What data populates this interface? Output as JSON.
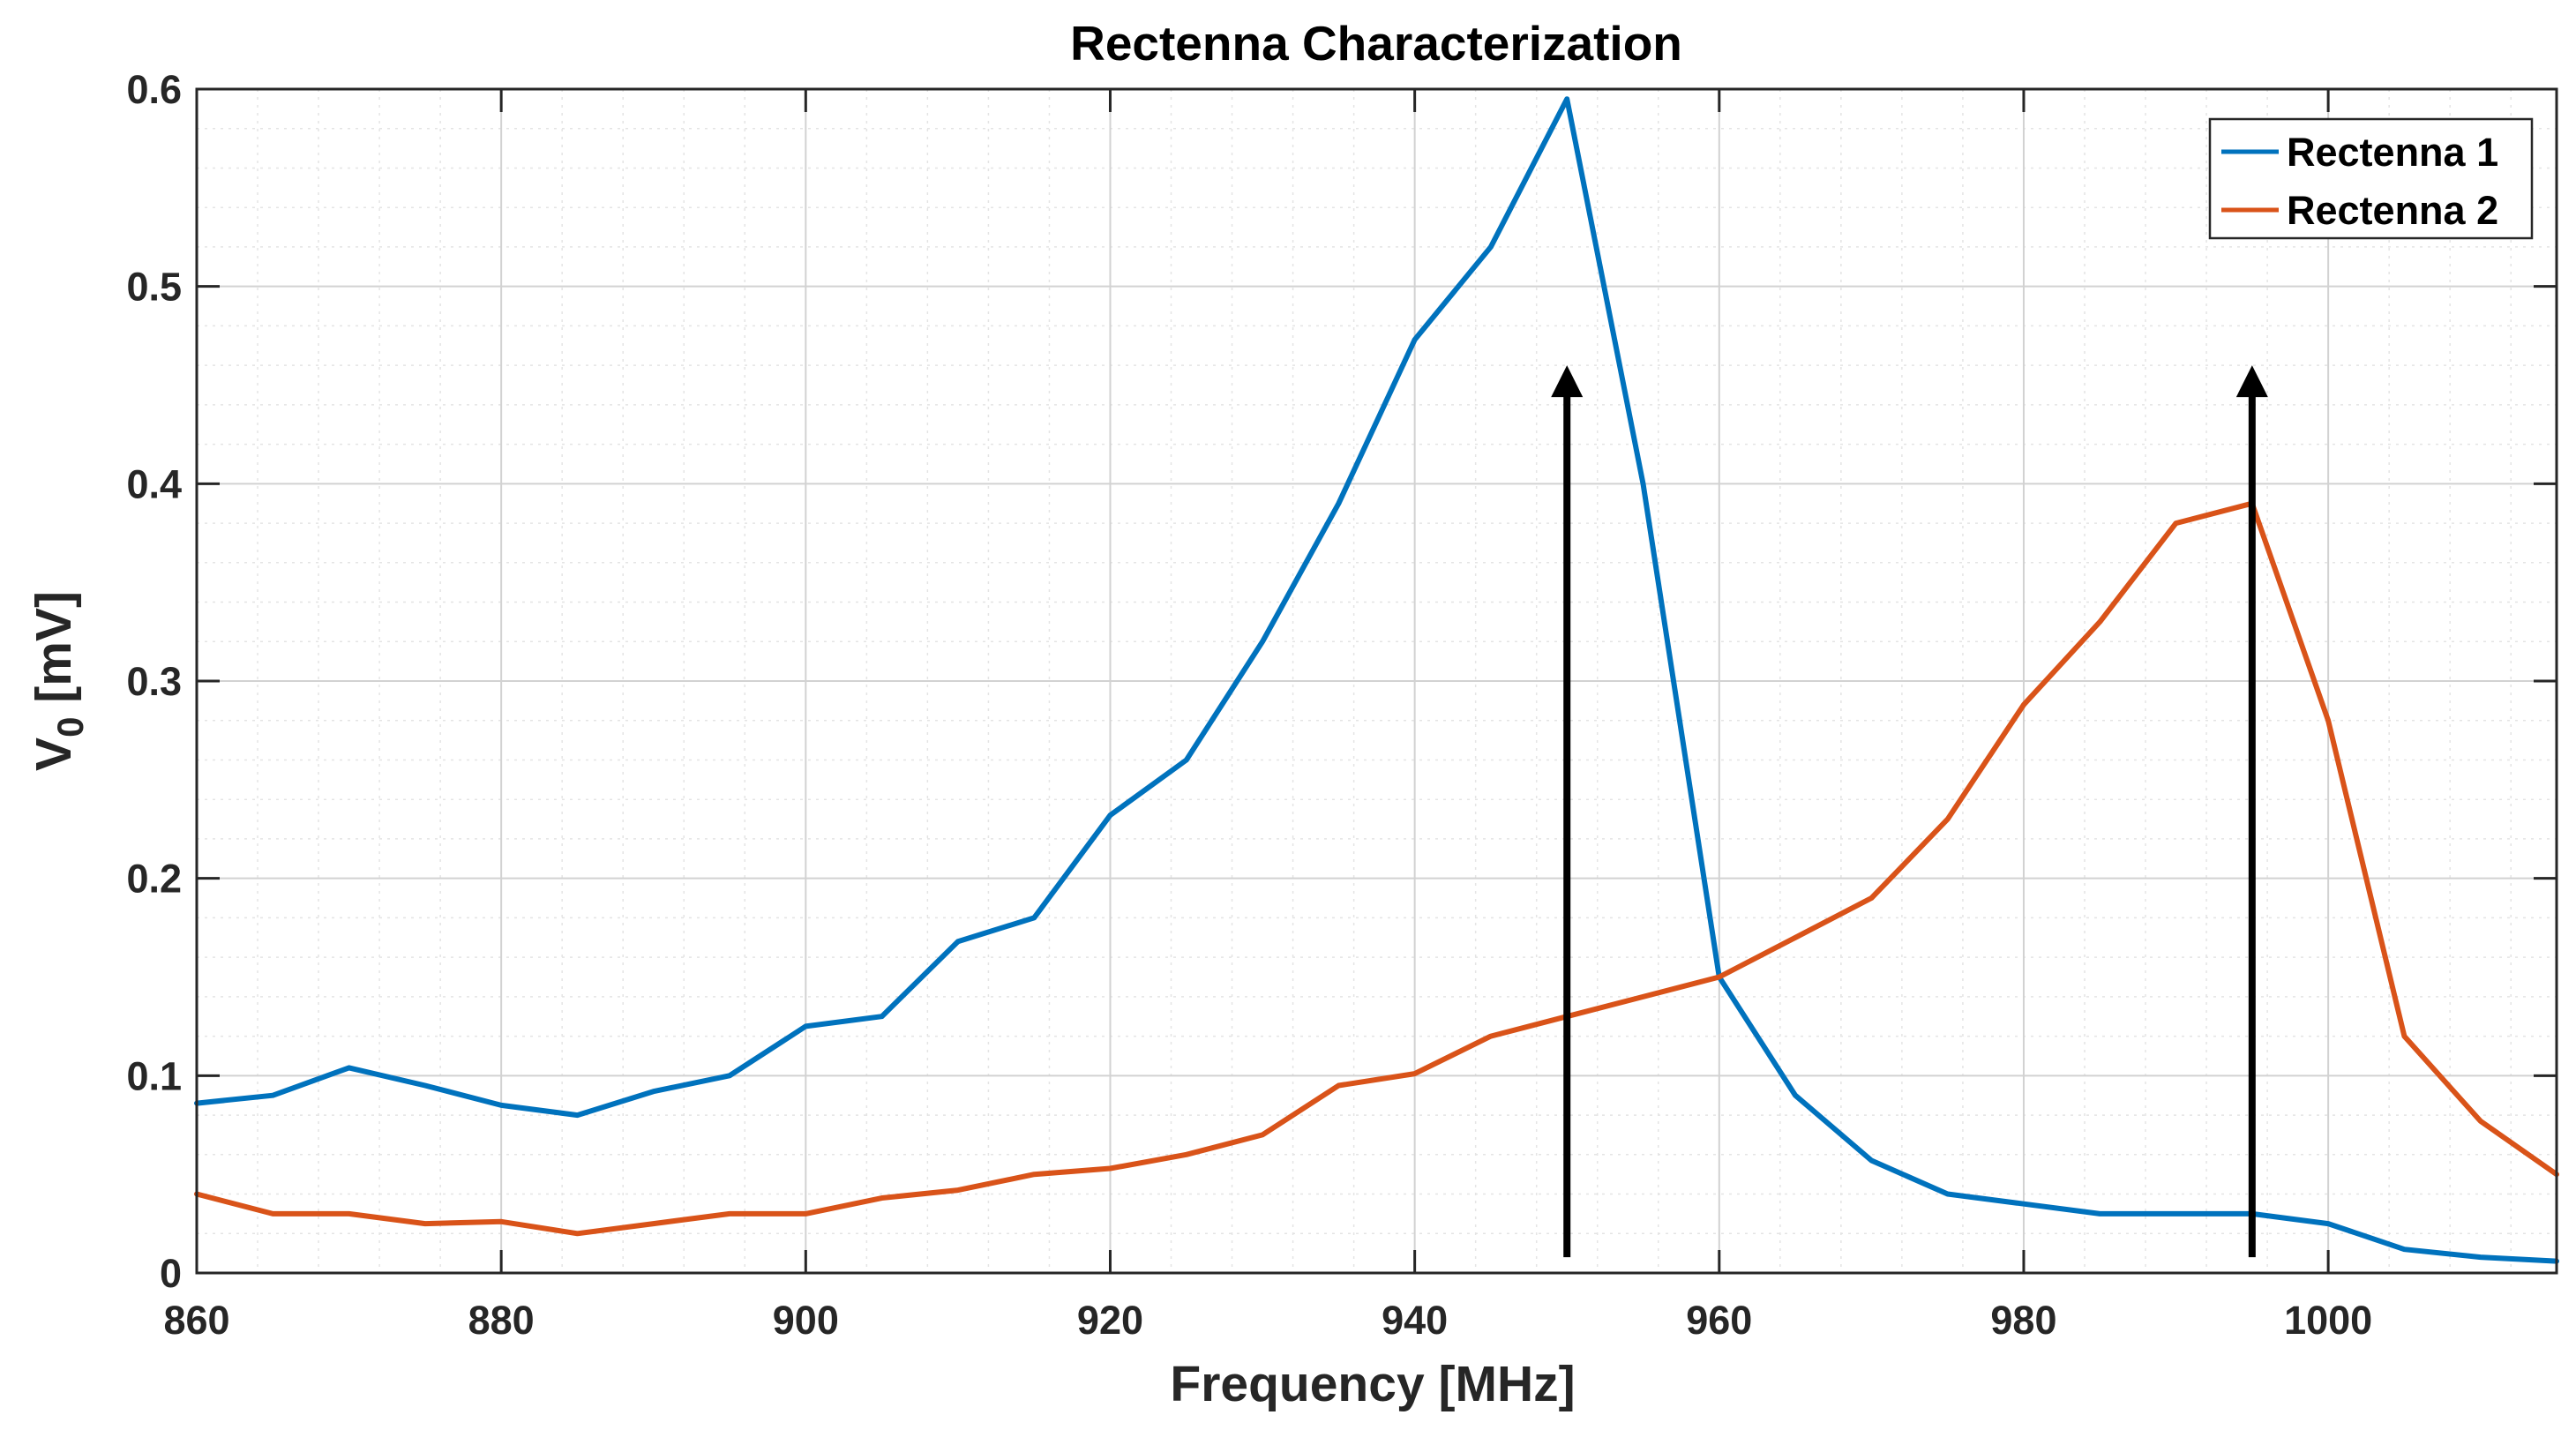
{
  "chart_data": {
    "type": "line",
    "title": "Rectenna Characterization",
    "xlabel": "Frequency [MHz]",
    "ylabel": {
      "main": "V",
      "subscript": "0",
      "suffix": " [mV]"
    },
    "xlim": [
      860,
      1015
    ],
    "ylim": [
      0,
      0.6
    ],
    "xticks": [
      860,
      880,
      900,
      920,
      940,
      960,
      980,
      1000
    ],
    "yticks": [
      0,
      0.1,
      0.2,
      0.3,
      0.4,
      0.5,
      0.6
    ],
    "xtick_labels": [
      "860",
      "880",
      "900",
      "920",
      "940",
      "960",
      "980",
      "1000"
    ],
    "ytick_labels": [
      "0",
      "0.1",
      "0.2",
      "0.3",
      "0.4",
      "0.5",
      "0.6"
    ],
    "grid": "major and minor",
    "legend_position": "top-right",
    "x": [
      860,
      865,
      870,
      875,
      880,
      885,
      890,
      895,
      900,
      905,
      910,
      915,
      920,
      925,
      930,
      935,
      940,
      945,
      950,
      955,
      960,
      965,
      970,
      975,
      980,
      985,
      990,
      995,
      1000,
      1005,
      1010,
      1015
    ],
    "series": [
      {
        "name": "Rectenna 1",
        "color": "#0072BD",
        "values": [
          0.086,
          0.09,
          0.104,
          0.095,
          0.085,
          0.08,
          0.092,
          0.1,
          0.125,
          0.13,
          0.168,
          0.18,
          0.232,
          0.26,
          0.32,
          0.39,
          0.473,
          0.52,
          0.595,
          0.4,
          0.15,
          0.09,
          0.057,
          0.04,
          0.035,
          0.03,
          0.03,
          0.03,
          0.025,
          0.012,
          0.008,
          0.006
        ]
      },
      {
        "name": "Rectenna 2",
        "color": "#D95319",
        "values": [
          0.04,
          0.03,
          0.03,
          0.025,
          0.026,
          0.02,
          0.025,
          0.03,
          0.03,
          0.038,
          0.042,
          0.05,
          0.053,
          0.06,
          0.07,
          0.095,
          0.101,
          0.12,
          0.13,
          0.14,
          0.15,
          0.17,
          0.19,
          0.23,
          0.288,
          0.33,
          0.38,
          0.39,
          0.28,
          0.12,
          0.077,
          0.05
        ]
      }
    ],
    "annotations": [
      {
        "type": "arrow",
        "x": 950,
        "y_start": 0.008,
        "y_end": 0.46,
        "color": "#000000"
      },
      {
        "type": "arrow",
        "x": 995,
        "y_start": 0.008,
        "y_end": 0.46,
        "color": "#000000"
      }
    ]
  }
}
